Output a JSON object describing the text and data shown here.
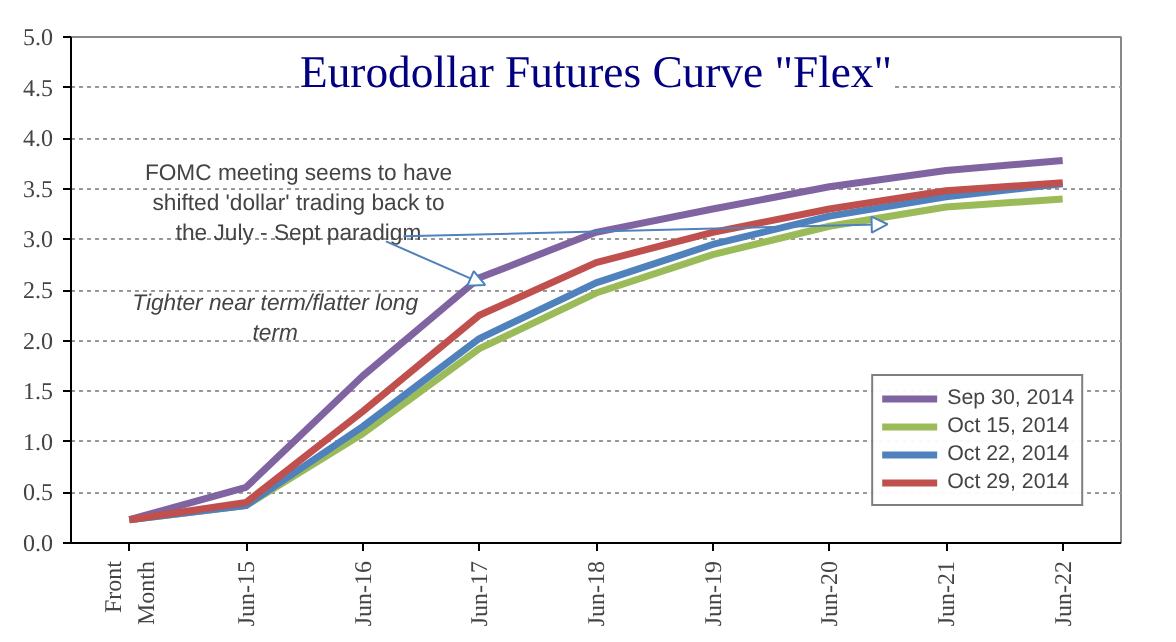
{
  "chart_data": {
    "type": "line",
    "title": "Eurodollar Futures Curve \"Flex\"",
    "categories": [
      "Front Month",
      "Jun-15",
      "Jun-16",
      "Jun-17",
      "Jun-18",
      "Jun-19",
      "Jun-20",
      "Jun-21",
      "Jun-22"
    ],
    "series": [
      {
        "name": "Sep 30, 2014",
        "color": "#8064a2",
        "values": [
          0.23,
          0.55,
          1.65,
          2.62,
          3.07,
          3.3,
          3.52,
          3.68,
          3.78
        ]
      },
      {
        "name": "Oct 15, 2014",
        "color": "#9bbb59",
        "values": [
          0.23,
          0.37,
          1.08,
          1.92,
          2.47,
          2.85,
          3.13,
          3.32,
          3.4
        ]
      },
      {
        "name": "Oct 22, 2014",
        "color": "#4f81bd",
        "values": [
          0.23,
          0.37,
          1.15,
          2.02,
          2.57,
          2.95,
          3.23,
          3.42,
          3.55
        ]
      },
      {
        "name": "Oct 29, 2014",
        "color": "#c0504d",
        "values": [
          0.23,
          0.4,
          1.3,
          2.25,
          2.77,
          3.07,
          3.3,
          3.48,
          3.56
        ]
      }
    ],
    "ylim": [
      0,
      5
    ],
    "yticks": [
      {
        "value": 0,
        "label": "0.0"
      },
      0.5,
      {
        "value": 1,
        "label": "1.0"
      },
      1.5,
      {
        "value": 2,
        "label": "2.0"
      },
      2.5,
      {
        "value": 3,
        "label": "3.0"
      },
      3.5,
      {
        "value": 4,
        "label": "4.0"
      },
      4.5,
      {
        "value": 5,
        "label": "5.0"
      }
    ],
    "grid": "y",
    "legend": "bottom right",
    "marker": "none",
    "line_style": "solid",
    "annotations": [
      {
        "text": "FOMC meeting seems to have shifted 'dollar' trading back to the July - Sept paradigm",
        "x": "Jun-17",
        "y": 2.55
      },
      "Tighter near term/flatter long term"
    ]
  }
}
